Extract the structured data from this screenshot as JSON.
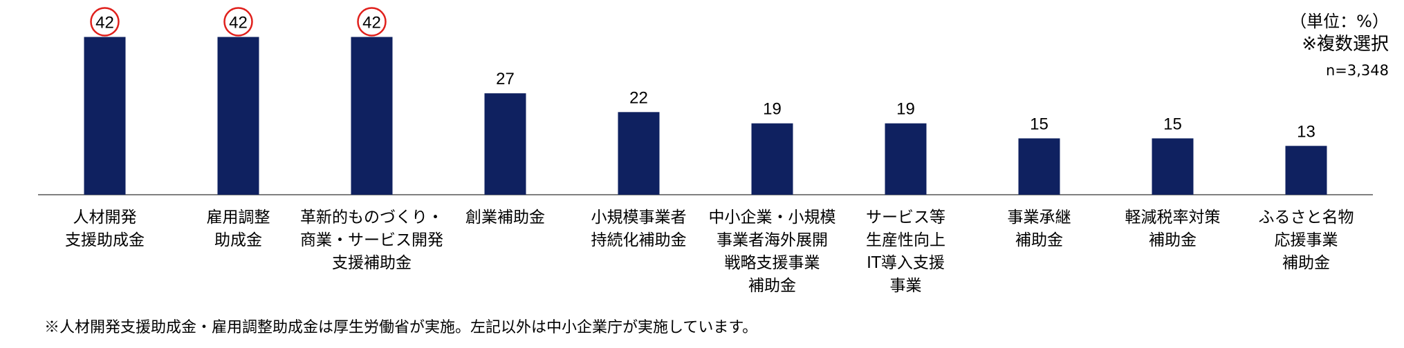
{
  "chart_data": {
    "type": "bar",
    "categories": [
      [
        "人材開発",
        "支援助成金"
      ],
      [
        "雇用調整",
        "助成金"
      ],
      [
        "革新的ものづくり・",
        "商業・サービス開発",
        "支援補助金"
      ],
      [
        "創業補助金"
      ],
      [
        "小規模事業者",
        "持続化補助金"
      ],
      [
        "中小企業・小規模",
        "事業者海外展開",
        "戦略支援事業",
        "補助金"
      ],
      [
        "サービス等",
        "生産性向上",
        "IT導入支援",
        "事業"
      ],
      [
        "事業承継",
        "補助金"
      ],
      [
        "軽減税率対策",
        "補助金"
      ],
      [
        "ふるさと名物",
        "応援事業",
        "補助金"
      ]
    ],
    "values": [
      42,
      42,
      42,
      27,
      22,
      19,
      19,
      15,
      15,
      13
    ],
    "highlighted": [
      true,
      true,
      true,
      false,
      false,
      false,
      false,
      false,
      false,
      false
    ],
    "bar_color": "#0f2160",
    "highlight_color": "#e0201c",
    "ylim": [
      0,
      50
    ],
    "grid": false
  },
  "meta": {
    "unit": "（単位：%）",
    "multi": "※複数選択",
    "n": "n=3,348"
  },
  "footnote": "※人材開発支援助成金・雇用調整助成金は厚生労働省が実施。左記以外は中小企業庁が実施しています。"
}
